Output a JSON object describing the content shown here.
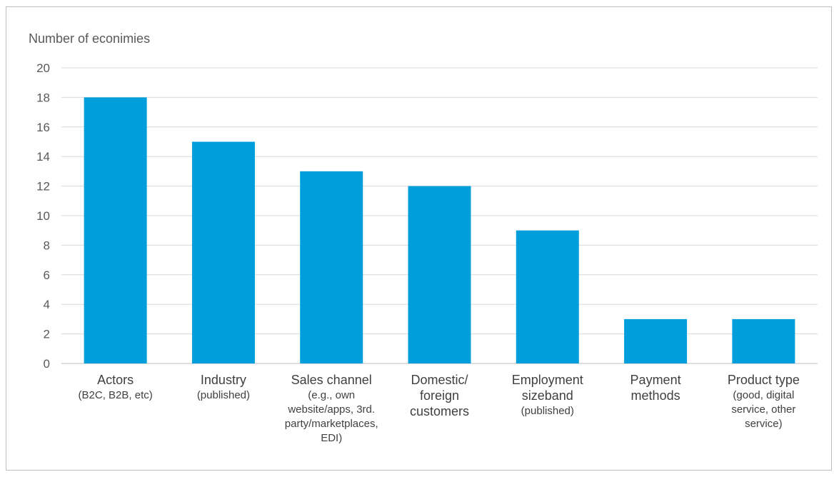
{
  "chart_data": {
    "type": "bar",
    "ylabel": "Number of econimies",
    "ylim": [
      0,
      20
    ],
    "yticks": [
      0,
      2,
      4,
      6,
      8,
      10,
      12,
      14,
      16,
      18,
      20
    ],
    "grid": true,
    "categories": [
      {
        "main": [
          "Actors"
        ],
        "sub": [
          "(B2C, B2B, etc)"
        ]
      },
      {
        "main": [
          "Industry"
        ],
        "sub": [
          "(published)"
        ]
      },
      {
        "main": [
          "Sales channel"
        ],
        "sub": [
          "(e.g., own",
          "website/apps, 3rd.",
          "party/marketplaces,",
          "EDI)"
        ]
      },
      {
        "main": [
          "Domestic/",
          "foreign",
          "customers"
        ],
        "sub": []
      },
      {
        "main": [
          "Employment",
          "sizeband"
        ],
        "sub": [
          "(published)"
        ]
      },
      {
        "main": [
          "Payment",
          "methods"
        ],
        "sub": []
      },
      {
        "main": [
          "Product type"
        ],
        "sub": [
          "(good, digital",
          "service, other",
          "service)"
        ]
      }
    ],
    "values": [
      18,
      15,
      13,
      12,
      9,
      3,
      3
    ],
    "colors": {
      "bar": "#009fdb",
      "grid": "#d9d9d9"
    }
  }
}
